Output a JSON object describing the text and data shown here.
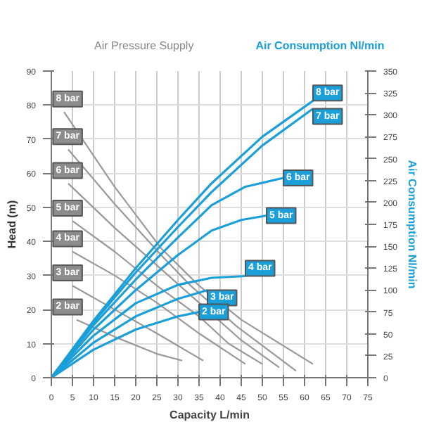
{
  "chart_data": {
    "type": "line",
    "xlabel": "Capacity L/min",
    "ylabel": "Head (m)",
    "y2label": "Air Consumption Nl/min",
    "annotations": [
      "Air Pressure Supply",
      "Air Consumption Nl/min"
    ],
    "xlim": [
      0,
      75
    ],
    "xticks": [
      0,
      5,
      10,
      15,
      20,
      25,
      30,
      35,
      40,
      45,
      50,
      55,
      60,
      65,
      70,
      75
    ],
    "ylim": [
      0,
      90
    ],
    "yticks": [
      0,
      10,
      20,
      30,
      40,
      50,
      60,
      70,
      80,
      90
    ],
    "y2lim": [
      0,
      350
    ],
    "y2ticks": [
      0,
      25,
      50,
      75,
      100,
      125,
      150,
      175,
      200,
      225,
      250,
      275,
      300,
      325,
      350
    ],
    "grid": true,
    "marker": "none",
    "line_style": "solid",
    "series": [
      {
        "name": "8 bar",
        "color": "#999999",
        "x": [
          3,
          15,
          26,
          35,
          45,
          62
        ],
        "values": [
          78,
          56,
          38,
          27,
          17,
          4
        ]
      },
      {
        "name": "7 bar",
        "color": "#999999",
        "x": [
          4,
          15,
          26,
          33,
          44,
          58
        ],
        "values": [
          67,
          51,
          36,
          27,
          15,
          2
        ]
      },
      {
        "name": "6 bar",
        "color": "#999999",
        "x": [
          4,
          15,
          25,
          35,
          45,
          54
        ],
        "values": [
          57,
          44,
          33,
          22,
          11,
          3
        ]
      },
      {
        "name": "5 bar",
        "color": "#999999",
        "x": [
          5,
          15,
          25,
          35,
          42,
          50
        ],
        "values": [
          46,
          37,
          27,
          18,
          10,
          4
        ]
      },
      {
        "name": "4 bar",
        "color": "#999999",
        "x": [
          5,
          15,
          25,
          35,
          46
        ],
        "values": [
          37,
          30,
          22,
          13,
          4
        ]
      },
      {
        "name": "3 bar",
        "color": "#999999",
        "x": [
          5,
          15,
          25,
          36
        ],
        "values": [
          27,
          20,
          13,
          5
        ]
      },
      {
        "name": "2 bar",
        "color": "#999999",
        "x": [
          6,
          15,
          25,
          31
        ],
        "values": [
          17,
          12,
          7,
          5
        ]
      },
      {
        "name": "8 bar",
        "color": "#1a9fd9",
        "axis": "y2",
        "x": [
          0,
          10,
          20,
          30,
          38,
          50,
          62
        ],
        "values": [
          0,
          65,
          125,
          180,
          222,
          275,
          316
        ]
      },
      {
        "name": "7 bar",
        "color": "#1a9fd9",
        "axis": "y2",
        "x": [
          0,
          10,
          20,
          30,
          38,
          50,
          62
        ],
        "values": [
          0,
          63,
          120,
          172,
          212,
          265,
          307
        ]
      },
      {
        "name": "6 bar",
        "color": "#1a9fd9",
        "axis": "y2",
        "x": [
          0,
          10,
          20,
          30,
          38,
          46,
          55
        ],
        "values": [
          0,
          60,
          112,
          160,
          197,
          218,
          228
        ]
      },
      {
        "name": "5 bar",
        "color": "#1a9fd9",
        "axis": "y2",
        "x": [
          0,
          10,
          20,
          30,
          38,
          45,
          51
        ],
        "values": [
          0,
          55,
          100,
          140,
          168,
          180,
          185
        ]
      },
      {
        "name": "4 bar",
        "color": "#1a9fd9",
        "axis": "y2",
        "x": [
          0,
          10,
          20,
          30,
          38,
          46
        ],
        "values": [
          0,
          48,
          85,
          106,
          114,
          116
        ]
      },
      {
        "name": "3 bar",
        "color": "#1a9fd9",
        "axis": "y2",
        "x": [
          0,
          10,
          20,
          30,
          37
        ],
        "values": [
          0,
          40,
          70,
          90,
          100
        ]
      },
      {
        "name": "2 bar",
        "color": "#1a9fd9",
        "axis": "y2",
        "x": [
          0,
          10,
          20,
          30,
          35
        ],
        "values": [
          0,
          32,
          55,
          70,
          75
        ]
      }
    ]
  }
}
